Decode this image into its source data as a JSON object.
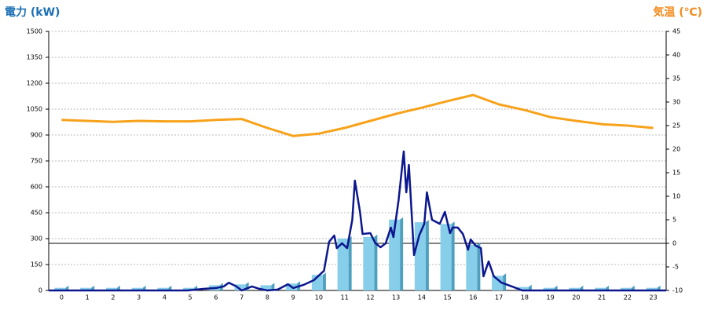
{
  "chart_data": {
    "type": "combo",
    "y_title": "電力 (kW)",
    "y2_title": "気温 (℃)",
    "categories": [
      "0",
      "1",
      "2",
      "3",
      "4",
      "5",
      "6",
      "7",
      "8",
      "9",
      "10",
      "11",
      "12",
      "13",
      "14",
      "15",
      "16",
      "17",
      "18",
      "19",
      "20",
      "21",
      "22",
      "23"
    ],
    "xlim": [
      -0.5,
      23.5
    ],
    "ylim": [
      0,
      1500
    ],
    "yticks": [
      0,
      150,
      300,
      450,
      600,
      750,
      900,
      1050,
      1200,
      1350,
      1500
    ],
    "y2lim": [
      -10,
      45
    ],
    "y2ticks": [
      -10,
      -5,
      0,
      5,
      10,
      15,
      20,
      25,
      30,
      35,
      40,
      45
    ],
    "grid": true,
    "series": [
      {
        "type": "bar",
        "color": "#87ceea",
        "values": [
          15,
          15,
          15,
          15,
          15,
          15,
          30,
          35,
          30,
          40,
          90,
          300,
          310,
          410,
          395,
          385,
          265,
          85,
          20,
          15,
          15,
          15,
          15,
          15
        ]
      },
      {
        "type": "line",
        "color": "#0c168e",
        "x": [
          -0.5,
          4.9,
          5.5,
          6.0,
          6.3,
          6.5,
          6.8,
          7.0,
          7.4,
          7.7,
          8.0,
          8.4,
          8.8,
          9.0,
          9.4,
          9.8,
          10.2,
          10.4,
          10.6,
          10.7,
          10.9,
          11.1,
          11.3,
          11.4,
          11.6,
          11.7,
          12.0,
          12.2,
          12.4,
          12.6,
          12.8,
          12.9,
          13.1,
          13.3,
          13.4,
          13.5,
          13.7,
          13.9,
          14.1,
          14.2,
          14.4,
          14.7,
          14.9,
          15.1,
          15.2,
          15.4,
          15.6,
          15.8,
          15.9,
          16.1,
          16.3,
          16.4,
          16.6,
          16.8,
          17.1,
          17.6,
          17.9,
          23.5
        ],
        "values": [
          0,
          0,
          9,
          14,
          23,
          45,
          23,
          0,
          23,
          9,
          0,
          5,
          36,
          14,
          32,
          59,
          114,
          282,
          318,
          245,
          273,
          245,
          409,
          636,
          455,
          327,
          332,
          273,
          250,
          273,
          364,
          309,
          523,
          805,
          568,
          727,
          205,
          318,
          386,
          568,
          409,
          386,
          455,
          332,
          364,
          364,
          327,
          236,
          295,
          259,
          245,
          82,
          168,
          82,
          45,
          18,
          0,
          0
        ]
      },
      {
        "type": "line",
        "axis": "y2",
        "color": "#f7a21b",
        "values": [
          26.2,
          26,
          25.8,
          26,
          25.9,
          25.9,
          26.2,
          26.4,
          24.5,
          22.8,
          23.3,
          24.5,
          26,
          27.5,
          28.8,
          30.2,
          31.5,
          29.5,
          28.3,
          26.8,
          26,
          25.3,
          25,
          24.5
        ]
      }
    ]
  }
}
